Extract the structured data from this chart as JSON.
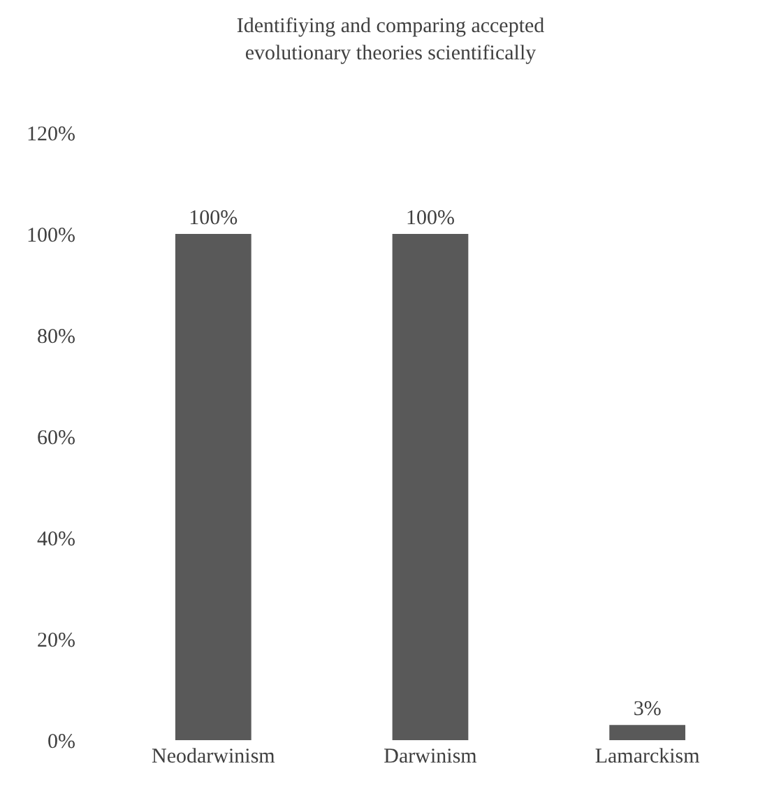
{
  "chart_data": {
    "type": "bar",
    "title": "Identifiying and comparing accepted\nevolutionary theories scientifically",
    "categories": [
      "Neodarwinism",
      "Darwinism",
      "Lamarckism"
    ],
    "values": [
      100,
      100,
      3
    ],
    "color": "#595959",
    "value_labels": [
      "100%",
      "100%",
      "3%"
    ],
    "ylim": [
      0,
      120
    ],
    "yticks": [
      {
        "value": 0,
        "label": "0%"
      },
      {
        "value": 20,
        "label": "20%"
      },
      {
        "value": 40,
        "label": "40%"
      },
      {
        "value": 60,
        "label": "60%"
      },
      {
        "value": 80,
        "label": "80%"
      },
      {
        "value": 100,
        "label": "100%"
      },
      {
        "value": 120,
        "label": "120%"
      }
    ],
    "legend": false
  }
}
